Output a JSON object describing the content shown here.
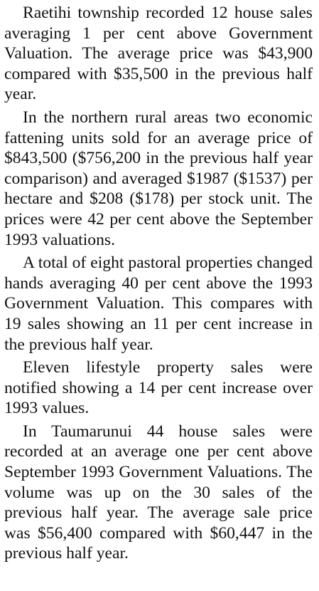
{
  "article": {
    "paragraphs": [
      "Raetihi township recorded 12 house sales averaging 1 per cent above Government Valuation. The average price was $43,900 compared with $35,500 in the previous half year.",
      "In the northern rural areas two economic fattening units sold for an average price of $843,500 ($756,200 in the previous half year comparison) and averaged $1987 ($1537) per hectare and $208 ($178) per stock unit. The prices were 42 per cent above the September 1993 valuations.",
      "A total of eight pastoral properties changed hands averaging 40 per cent above the 1993 Government Valuation. This compares with 19 sales showing an 11 per cent increase in the previous half year.",
      "Eleven lifestyle property sales were notified showing a 14 per cent increase over 1993 values.",
      "In Taumarunui 44 house sales were recorded at an average one per cent above September 1993 Government Valuations. The volume was up on the 30 sales of the previous half year. The average sale price was $56,400 compared with $60,447 in the previous half year."
    ]
  }
}
